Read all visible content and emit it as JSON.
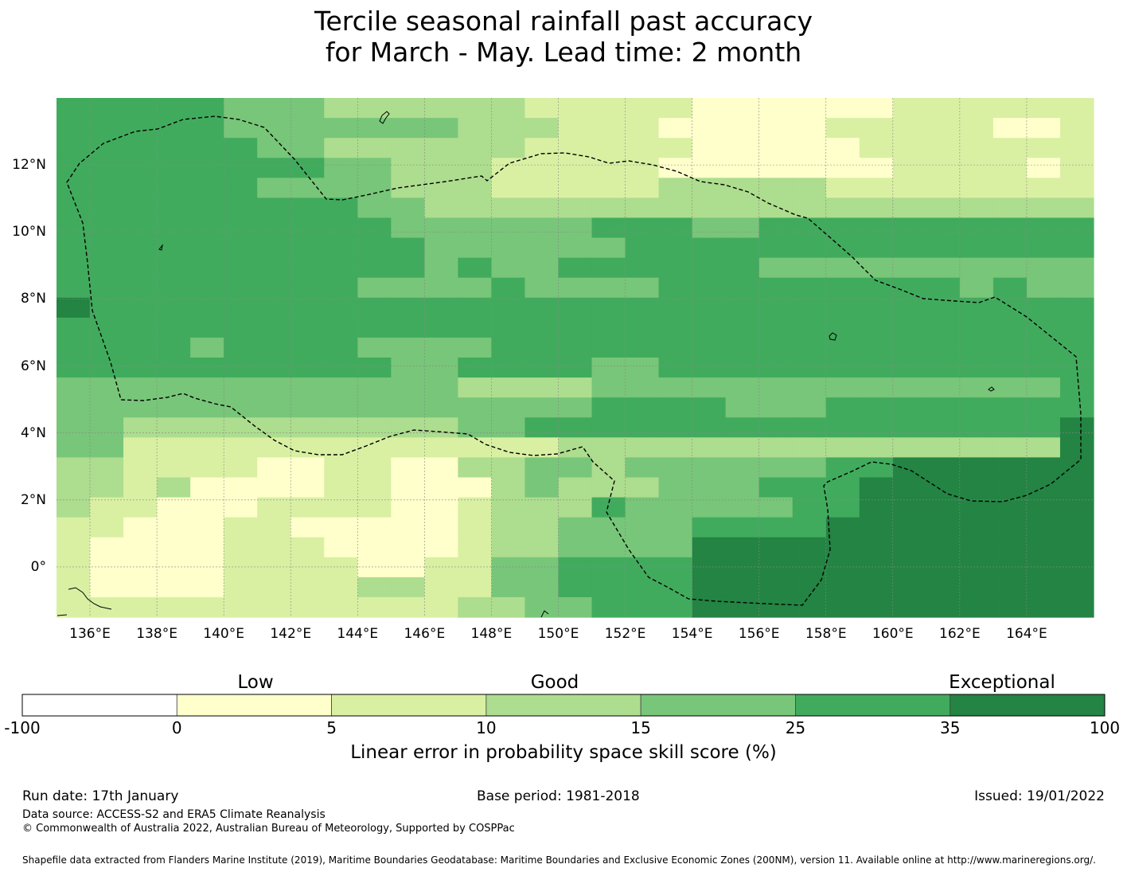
{
  "title": {
    "line1": "Tercile seasonal rainfall past accuracy",
    "line2": "for March - May. Lead time: 2 month"
  },
  "map": {
    "lon_ticks": [
      "136°E",
      "138°E",
      "140°E",
      "142°E",
      "144°E",
      "146°E",
      "148°E",
      "150°E",
      "152°E",
      "154°E",
      "156°E",
      "158°E",
      "160°E",
      "162°E",
      "164°E"
    ],
    "lat_ticks": [
      "12°N",
      "10°N",
      "8°N",
      "6°N",
      "4°N",
      "2°N",
      "0°"
    ],
    "lon_range": [
      135,
      166
    ],
    "lat_range": [
      -1.5,
      14
    ],
    "grid_rows_top_to_bottom": [
      "4444433322222211111000000111111",
      "4444433333332221110000011111001",
      "4444443322222211111000001111111",
      "4444444433222111110000000111101",
      "4444443333222111112222211111111",
      "4444444443322222222222222222222",
      "4444444444333333444334444444444",
      "4444444444433333344444444444444",
      "4444444444434334444443333333333",
      "4444444443333433334444444443433",
      "5444444444444444444444444444444",
      "4444444444444444444444444444444",
      "4444344443333444444444444444444",
      "4444444444334444334444444444444",
      "3333333333332222333333333333334",
      "3333333333333333444433344444444",
      "3322222222223344444444444444445",
      "3311111111111112222222222222225",
      "2211110011002233233333344555555",
      "2212000011000232223334445555555",
      "2110001111001222433333445555555",
      "1100011000001223333444455555555",
      "1000011100001223333555555555555",
      "1000011110011334444555555555555",
      "1000011112211334444555555555555",
      "1111111111112233444555555555555"
    ],
    "annotation_note": "EEZ boundary"
  },
  "colorbar": {
    "categories": [
      "Low",
      "Good",
      "Exceptional"
    ],
    "ticks": [
      "-100",
      "0",
      "5",
      "10",
      "15",
      "25",
      "35",
      "100"
    ],
    "colors": [
      "#ffffff",
      "#ffffcc",
      "#d9f0a3",
      "#addd8e",
      "#78c679",
      "#41ab5d",
      "#238443"
    ],
    "label": "Linear error in probability space skill score (%)"
  },
  "footer": {
    "run_date": "Run date: 17th January",
    "base_period": "Base period: 1981-2018",
    "issued": "Issued: 19/01/2022",
    "data_source": "Data source: ACCESS-S2 and ERA5 Climate Reanalysis",
    "copyright": "© Commonwealth of Australia 2022, Australian Bureau of Meteorology, Supported by COSPPac",
    "shapefile": "Shapefile data extracted from Flanders Marine Institute (2019), Maritime Boundaries Geodatabase: Maritime Boundaries and Exclusive Economic Zones (200NM), version 11. Available online at http://www.marineregions.org/."
  }
}
